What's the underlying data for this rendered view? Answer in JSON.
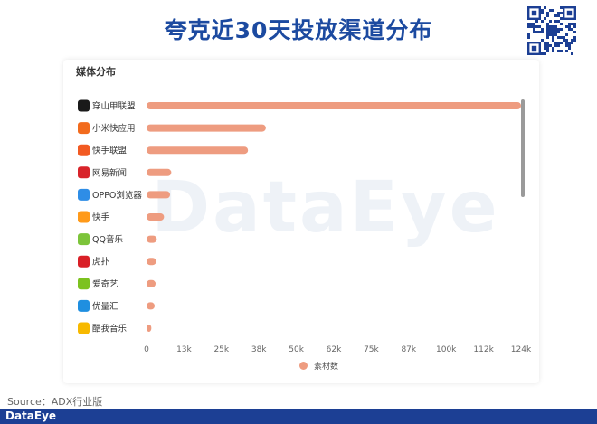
{
  "page": {
    "title": "夸克近30天投放渠道分布",
    "section_title": "媒体分布",
    "watermark": "DataEye",
    "source": "Source：ADX行业版",
    "footer_logo": "DataEye"
  },
  "colors": {
    "bar": "#ee9c80",
    "title": "#1c4aa0",
    "footer": "#1c3f94"
  },
  "chart_data": {
    "type": "bar",
    "orientation": "horizontal",
    "title": "",
    "xlabel": "",
    "ylabel": "",
    "categories": [
      "穿山甲联盟",
      "小米快应用",
      "快手联盟",
      "网易新闻",
      "OPPO浏览器",
      "快手",
      "QQ音乐",
      "虎扑",
      "爱奇艺",
      "优量汇",
      "酷我音乐"
    ],
    "category_icons": [
      "pangle-icon",
      "xiaomi-icon",
      "kuaishou-union-icon",
      "netease-news-icon",
      "oppo-browser-icon",
      "kuaishou-icon",
      "qq-music-icon",
      "hupu-icon",
      "iqiyi-icon",
      "youlianghui-icon",
      "kuwo-music-icon"
    ],
    "icon_colors": [
      "#1a1a1a",
      "#f26b1d",
      "#f25a22",
      "#d8232a",
      "#2e8de6",
      "#ff9a1a",
      "#7cc43a",
      "#d91f26",
      "#7cc21f",
      "#1f8fe0",
      "#f7b900"
    ],
    "series": [
      {
        "name": "素材数",
        "values": [
          124000,
          39500,
          33600,
          8200,
          7800,
          5800,
          3400,
          3200,
          3000,
          2700,
          1600
        ]
      }
    ],
    "x_ticks": [
      "0",
      "13k",
      "25k",
      "38k",
      "50k",
      "62k",
      "75k",
      "87k",
      "100k",
      "112k",
      "124k"
    ],
    "xlim": [
      0,
      124000
    ],
    "grid": false,
    "legend_position": "bottom"
  }
}
